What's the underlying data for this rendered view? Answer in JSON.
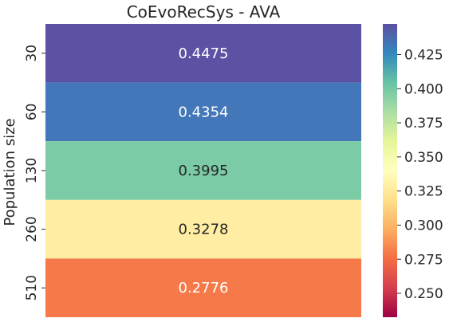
{
  "chart_data": {
    "type": "heatmap",
    "title": "CoEvoRecSys - AVA",
    "ylabel": "Population size",
    "xlabel": "",
    "rows": [
      "30",
      "60",
      "130",
      "260",
      "510"
    ],
    "values": [
      0.4475,
      0.4354,
      0.3995,
      0.3278,
      0.2776
    ],
    "cell_labels": [
      "0.4475",
      "0.4354",
      "0.3995",
      "0.3278",
      "0.2776"
    ],
    "colormap": "Spectral",
    "colorbar": {
      "min": 0.2325,
      "max": 0.4475,
      "ticks": [
        "0.250",
        "0.275",
        "0.300",
        "0.325",
        "0.350",
        "0.375",
        "0.400",
        "0.425"
      ],
      "tick_values": [
        0.25,
        0.275,
        0.3,
        0.325,
        0.35,
        0.375,
        0.4,
        0.425
      ]
    },
    "cell_colors": [
      "#5b52a3",
      "#4377b9",
      "#7acba6",
      "#feeda2",
      "#f67a49"
    ],
    "label_colors": [
      "#ffffff",
      "#ffffff",
      "#262626",
      "#262626",
      "#ffffff"
    ]
  }
}
